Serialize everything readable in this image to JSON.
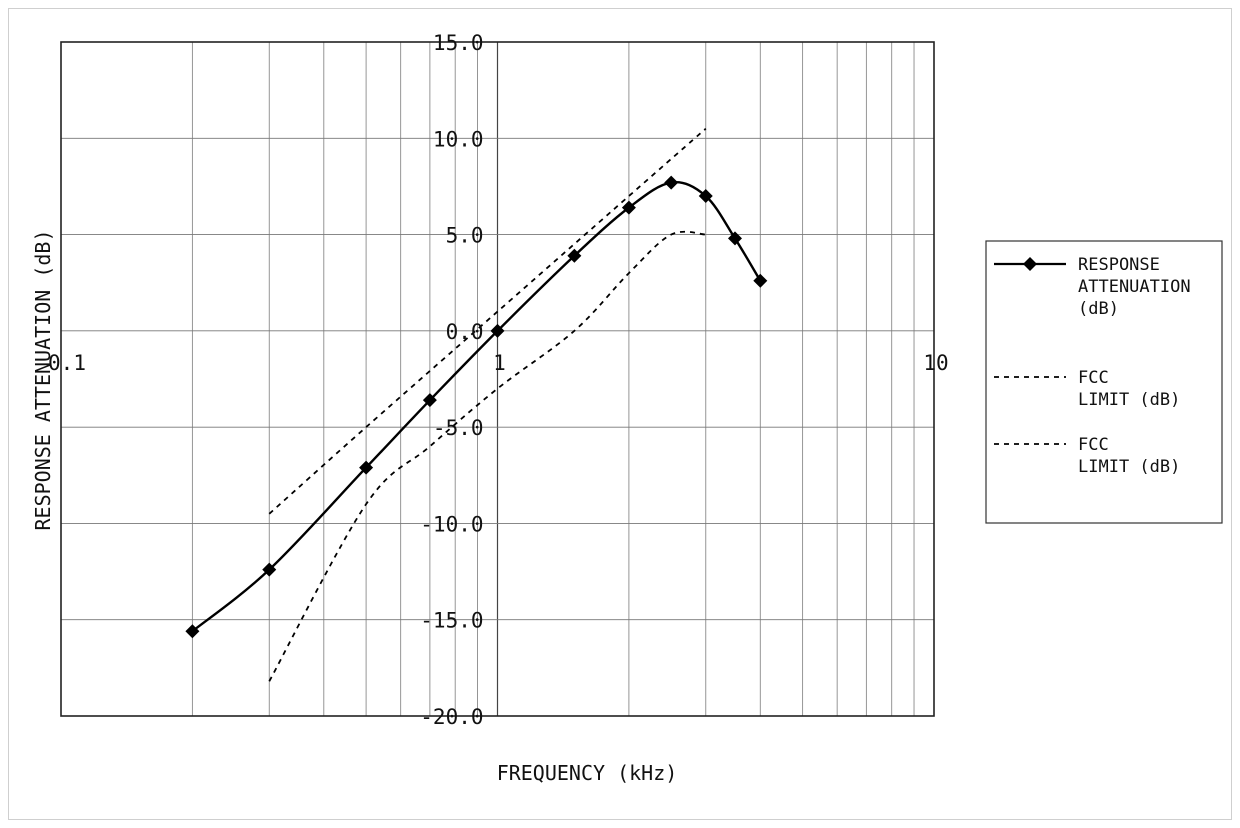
{
  "chart_data": {
    "type": "line",
    "x_scale": "log",
    "xlim": [
      0.1,
      10
    ],
    "ylim": [
      -20,
      15
    ],
    "xlabel": "FREQUENCY (kHz)",
    "ylabel": "RESPONSE ATTENUATION (dB)",
    "x_tick_labels": [
      "0.1",
      "1",
      "10"
    ],
    "x_tick_values": [
      0.1,
      1,
      10
    ],
    "y_tick_labels": [
      "15.0",
      "10.0",
      "5.0",
      "0.0",
      "-5.0",
      "-10.0",
      "-15.0",
      "-20.0"
    ],
    "y_tick_values": [
      15,
      10,
      5,
      0,
      -5,
      -10,
      -15,
      -20
    ],
    "grid": true,
    "legend_position": "right",
    "series": [
      {
        "name": "RESPONSE ATTENUATION (dB)",
        "name_lines": [
          "RESPONSE",
          "ATTENUATION",
          "(dB)"
        ],
        "style": "solid-diamond",
        "color": "#000000",
        "x": [
          0.2,
          0.3,
          0.5,
          0.7,
          1.0,
          1.5,
          2.0,
          2.5,
          3.0,
          3.5,
          4.0
        ],
        "y": [
          -15.6,
          -12.4,
          -7.1,
          -3.6,
          0.0,
          3.9,
          6.4,
          7.7,
          7.0,
          4.8,
          2.6
        ]
      },
      {
        "name": "FCC LIMIT (dB)",
        "name_lines": [
          "FCC",
          "LIMIT (dB)"
        ],
        "style": "dashed",
        "color": "#000000",
        "x": [
          0.3,
          0.5,
          1.0,
          2.0,
          3.0
        ],
        "y": [
          -9.5,
          -5.0,
          1.0,
          7.0,
          10.5
        ]
      },
      {
        "name": "FCC LIMIT (dB)",
        "name_lines": [
          "FCC",
          "LIMIT (dB)"
        ],
        "style": "dashed",
        "color": "#000000",
        "x": [
          0.3,
          0.5,
          0.7,
          1.0,
          1.5,
          2.0,
          2.5,
          3.0
        ],
        "y": [
          -18.2,
          -9.0,
          -6.0,
          -3.0,
          0.0,
          3.0,
          5.0,
          5.0
        ]
      }
    ]
  }
}
